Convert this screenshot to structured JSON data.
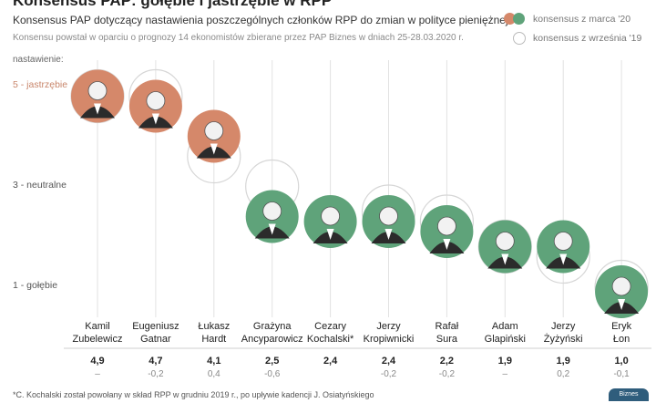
{
  "header": {
    "title": "Konsensus PAP: gołębie i jastrzębie w RPP",
    "subtitle": "Konsensus PAP dotyczący nastawienia poszczególnych członków RPP do zmian w polityce pieniężnej",
    "note": "Konsensu powstał w oparciu o prognozy 14 ekonomistów zbierane przez PAP Biznes w dniach 25-28.03.2020 r."
  },
  "legend": {
    "march": "konsensus z marca '20",
    "september": "konsensus z września '19"
  },
  "colors": {
    "hawk": "#d5886a",
    "dove": "#5fa37a",
    "neutral_line": "#cccccc",
    "ring": "#d6d6d6"
  },
  "footnote": "*C. Kochalski został powołany w skład RPP w grudniu 2019 r., po upływie kadencji J. Osiatyńskiego",
  "logo": "Biznes",
  "chart_data": {
    "type": "scatter",
    "ylabel": "nastawienie:",
    "ylim": [
      1,
      5
    ],
    "yticks": [
      {
        "value": 5,
        "label": "5 - jastrzębie"
      },
      {
        "value": 3,
        "label": "3 - neutralne"
      },
      {
        "value": 1,
        "label": "1 - gołębie"
      }
    ],
    "members": [
      {
        "name1": "Kamil",
        "name2": "Zubelewicz",
        "march": 4.9,
        "change_label": "–",
        "september": 4.9,
        "tone": "hawk"
      },
      {
        "name1": "Eugeniusz",
        "name2": "Gatnar",
        "march": 4.7,
        "change_label": "-0,2",
        "september": 4.9,
        "tone": "hawk"
      },
      {
        "name1": "Łukasz",
        "name2": "Hardt",
        "march": 4.1,
        "change_label": "0,4",
        "september": 3.7,
        "tone": "hawk"
      },
      {
        "name1": "Grażyna",
        "name2": "Ancyparowicz",
        "march": 2.5,
        "change_label": "-0,6",
        "september": 3.1,
        "tone": "dove"
      },
      {
        "name1": "Cezary",
        "name2": "Kochalski*",
        "march": 2.4,
        "change_label": "",
        "september": null,
        "tone": "dove"
      },
      {
        "name1": "Jerzy",
        "name2": "Kropiwnicki",
        "march": 2.4,
        "change_label": "-0,2",
        "september": 2.6,
        "tone": "dove"
      },
      {
        "name1": "Rafał",
        "name2": "Sura",
        "march": 2.2,
        "change_label": "-0,2",
        "september": 2.4,
        "tone": "dove"
      },
      {
        "name1": "Adam",
        "name2": "Glapiński",
        "march": 1.9,
        "change_label": "–",
        "september": 1.9,
        "tone": "dove"
      },
      {
        "name1": "Jerzy",
        "name2": "Żyżyński",
        "march": 1.9,
        "change_label": "0,2",
        "september": 1.7,
        "tone": "dove"
      },
      {
        "name1": "Eryk",
        "name2": "Łon",
        "march": 1.0,
        "change_label": "-0,1",
        "september": 1.1,
        "tone": "dove"
      }
    ],
    "value_labels": [
      "4,9",
      "4,7",
      "4,1",
      "2,5",
      "2,4",
      "2,4",
      "2,2",
      "1,9",
      "1,9",
      "1,0"
    ]
  }
}
